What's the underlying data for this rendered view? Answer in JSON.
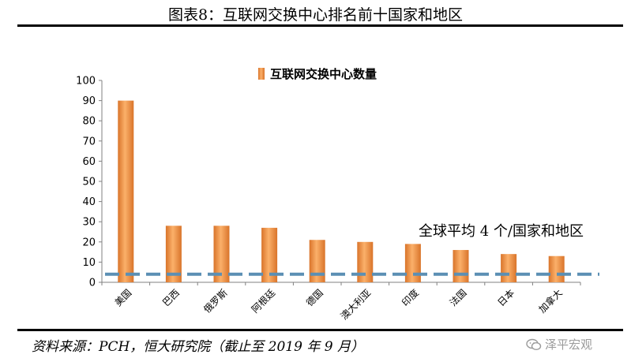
{
  "title": "图表8：互联网交换中心排名前十国家和地区",
  "source": "资料来源：PCH，恒大研究院（截止至 2019 年 9 月）",
  "watermark": "泽平宏观",
  "chart_data": {
    "type": "bar",
    "categories": [
      "美国",
      "巴西",
      "俄罗斯",
      "阿根廷",
      "德国",
      "澳大利亚",
      "印度",
      "法国",
      "日本",
      "加拿大"
    ],
    "series": [
      {
        "name": "互联网交换中心数量",
        "values": [
          90,
          28,
          28,
          27,
          21,
          20,
          19,
          16,
          14,
          13
        ]
      }
    ],
    "ylim": [
      0,
      100
    ],
    "yticks": [
      0,
      10,
      20,
      30,
      40,
      50,
      60,
      70,
      80,
      90,
      100
    ],
    "reference_line": {
      "value": 4,
      "label": "全球平均 4 个/国家和地区",
      "style": "dashed"
    },
    "legend": "top-center",
    "grid": false,
    "colors": {
      "bar": "#f09a4a",
      "bar_dark": "#d9742a",
      "reference_line": "#5b8fb4",
      "axis": "#808080"
    }
  }
}
